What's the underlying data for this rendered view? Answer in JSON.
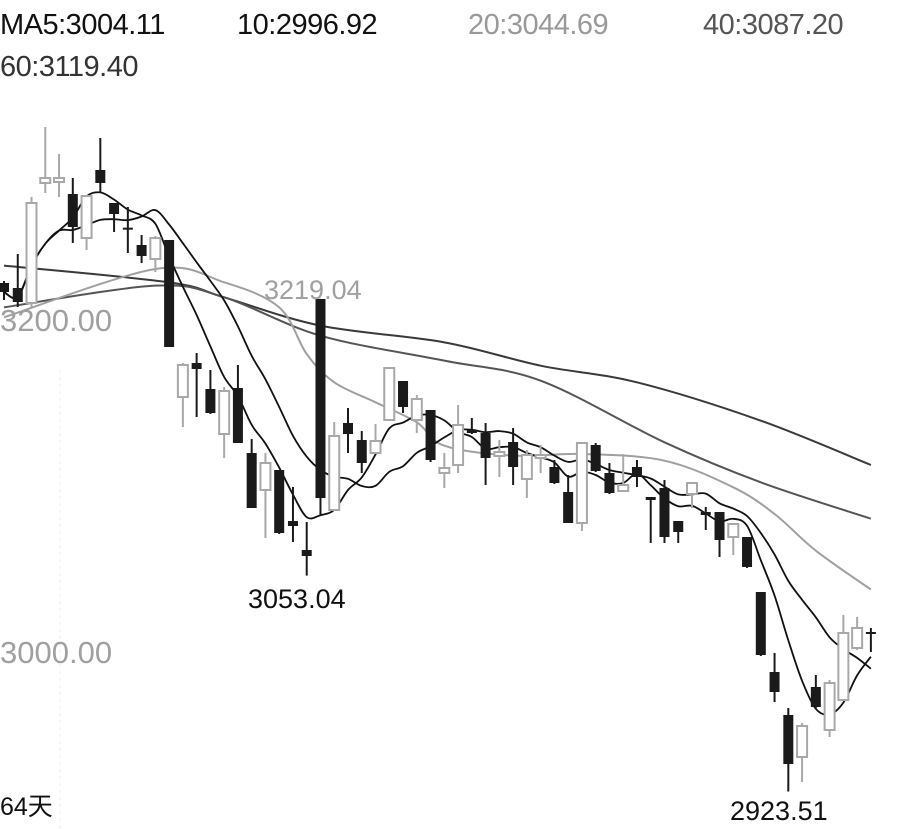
{
  "legend": {
    "ma5": "MA5:3004.11",
    "ma10": "10:2996.92",
    "ma20": "20:3044.69",
    "ma40": "40:3087.20",
    "ma60": "60:3119.40"
  },
  "colors": {
    "down": "#1a1a1a",
    "up": "#a8a8a8",
    "ma5": "#111111",
    "ma10": "#111111",
    "ma20": "#a0a0a0",
    "ma40": "#555555",
    "ma60": "#3a3a3a",
    "axis_label": "#a0a0a0"
  },
  "chart_data": {
    "type": "candlestick",
    "period_label": "64天",
    "y_ticks": [
      {
        "value": 3200,
        "label": "3200.00"
      },
      {
        "value": 3000,
        "label": "3000.00"
      }
    ],
    "annotations": [
      {
        "label": "3219.04",
        "index": 23,
        "value": 3219.04,
        "kind": "high"
      },
      {
        "label": "3053.04",
        "index": 22,
        "value": 3053.04,
        "kind": "low"
      },
      {
        "label": "2923.51",
        "index": 57,
        "value": 2923.51,
        "kind": "low"
      }
    ],
    "ylim": [
      2920,
      3330
    ],
    "candles_ohlc": [
      [
        3228.6,
        3229.8,
        3218.4,
        3223.2
      ],
      [
        3225.6,
        3246.0,
        3214.2,
        3217.2
      ],
      [
        3216.6,
        3280.2,
        3214.2,
        3276.6
      ],
      [
        3288.6,
        3322.2,
        3282.6,
        3291.6
      ],
      [
        3289.2,
        3306.0,
        3280.2,
        3291.6
      ],
      [
        3282.0,
        3291.6,
        3252.6,
        3262.2
      ],
      [
        3255.6,
        3281.4,
        3248.4,
        3280.8
      ],
      [
        3296.4,
        3315.6,
        3282.6,
        3288.6
      ],
      [
        3276.6,
        3276.6,
        3259.2,
        3270.0
      ],
      [
        3261.8,
        3274.2,
        3246.6,
        3261.6
      ],
      [
        3251.4,
        3257.4,
        3240.6,
        3244.8
      ],
      [
        3243.0,
        3256.8,
        3235.2,
        3255.6
      ],
      [
        3254.4,
        3254.4,
        3190.2,
        3190.2
      ],
      [
        3160.2,
        3180.6,
        3142.2,
        3179.4
      ],
      [
        3180.6,
        3186.6,
        3148.2,
        3177.0
      ],
      [
        3165.0,
        3176.4,
        3150.0,
        3150.6
      ],
      [
        3138.0,
        3166.2,
        3123.6,
        3163.8
      ],
      [
        3165.6,
        3179.4,
        3132.6,
        3132.6
      ],
      [
        3126.6,
        3135.0,
        3093.6,
        3093.6
      ],
      [
        3104.4,
        3126.6,
        3075.6,
        3120.6
      ],
      [
        3116.4,
        3116.4,
        3078.0,
        3078.6
      ],
      [
        3085.8,
        3106.2,
        3073.2,
        3082.8
      ],
      [
        3068.4,
        3085.2,
        3053.04,
        3064.8
      ],
      [
        3219.0,
        3219.04,
        3089.4,
        3099.6
      ],
      [
        3092.4,
        3145.2,
        3092.4,
        3136.8
      ],
      [
        3144.6,
        3153.6,
        3126.6,
        3138.0
      ],
      [
        3134.4,
        3139.8,
        3114.6,
        3120.6
      ],
      [
        3126.6,
        3144.0,
        3126.0,
        3133.8
      ],
      [
        3146.4,
        3177.6,
        3146.4,
        3177.6
      ],
      [
        3169.8,
        3169.8,
        3150.6,
        3154.2
      ],
      [
        3146.4,
        3161.4,
        3138.6,
        3159.0
      ],
      [
        3152.4,
        3152.4,
        3121.2,
        3122.4
      ],
      [
        3114.6,
        3126.6,
        3105.6,
        3117.6
      ],
      [
        3119.4,
        3155.4,
        3114.6,
        3143.4
      ],
      [
        3140.4,
        3147.6,
        3138.0,
        3138.6
      ],
      [
        3138.6,
        3144.6,
        3107.4,
        3123.6
      ],
      [
        3124.8,
        3134.4,
        3112.2,
        3127.2
      ],
      [
        3133.2,
        3141.6,
        3107.4,
        3118.2
      ],
      [
        3111.0,
        3128.4,
        3099.6,
        3125.4
      ],
      [
        3123.6,
        3131.4,
        3114.6,
        3125.4
      ],
      [
        3118.2,
        3122.4,
        3108.0,
        3108.6
      ],
      [
        3103.2,
        3113.4,
        3084.6,
        3084.6
      ],
      [
        3084.6,
        3132.6,
        3079.8,
        3132.6
      ],
      [
        3131.4,
        3132.6,
        3115.2,
        3115.8
      ],
      [
        3114.6,
        3120.6,
        3102.0,
        3102.6
      ],
      [
        3103.8,
        3126.0,
        3103.2,
        3107.4
      ],
      [
        3118.2,
        3122.4,
        3106.2,
        3112.2
      ],
      [
        3100.2,
        3100.2,
        3072.6,
        3098.4
      ],
      [
        3105.6,
        3110.4,
        3072.6,
        3076.2
      ],
      [
        3085.8,
        3085.8,
        3072.6,
        3079.2
      ],
      [
        3102.0,
        3109.2,
        3093.6,
        3108.6
      ],
      [
        3091.2,
        3094.2,
        3080.4,
        3089.4
      ],
      [
        3091.2,
        3091.2,
        3064.2,
        3074.4
      ],
      [
        3076.2,
        3084.6,
        3065.4,
        3084.0
      ],
      [
        3076.2,
        3076.2,
        3057.6,
        3058.2
      ],
      [
        3043.2,
        3043.2,
        3004.8,
        3005.4
      ],
      [
        2995.2,
        3006.6,
        2977.2,
        2983.2
      ],
      [
        2969.4,
        2973.6,
        2923.51,
        2940.0
      ],
      [
        2944.2,
        2964.6,
        2929.2,
        2962.8
      ],
      [
        2986.2,
        2993.4,
        2973.6,
        2974.2
      ],
      [
        2960.4,
        2990.4,
        2956.2,
        2988.6
      ],
      [
        2978.4,
        3029.4,
        2977.8,
        3018.6
      ],
      [
        3009.6,
        3028.2,
        3008.4,
        3021.6
      ],
      [
        3019.2,
        3021.6,
        3007.2,
        3018.9
      ]
    ],
    "moving_averages": {
      "ma20": [
        [
          0,
          3208
        ],
        [
          11,
          3237
        ],
        [
          16,
          3229
        ],
        [
          20,
          3214
        ],
        [
          22,
          3186
        ],
        [
          24,
          3169
        ],
        [
          27,
          3157
        ],
        [
          30,
          3145
        ],
        [
          32,
          3131
        ],
        [
          37,
          3125
        ],
        [
          42,
          3126
        ],
        [
          48,
          3122
        ],
        [
          53,
          3106
        ],
        [
          56,
          3090
        ],
        [
          59,
          3068
        ],
        [
          63,
          3044.69
        ]
      ],
      "ma40": [
        [
          0,
          3214
        ],
        [
          11,
          3227
        ],
        [
          16,
          3220
        ],
        [
          23,
          3197
        ],
        [
          32,
          3182
        ],
        [
          39,
          3170
        ],
        [
          48,
          3133
        ],
        [
          55,
          3109
        ],
        [
          63,
          3087.2
        ]
      ],
      "ma60": [
        [
          0,
          3239
        ],
        [
          12,
          3229
        ],
        [
          16,
          3220
        ],
        [
          23,
          3203
        ],
        [
          32,
          3193
        ],
        [
          39,
          3179
        ],
        [
          46,
          3169
        ],
        [
          55,
          3146
        ],
        [
          63,
          3119.4
        ]
      ]
    },
    "ma_last": {
      "ma5": 3004.11,
      "ma10": 2996.92
    }
  }
}
